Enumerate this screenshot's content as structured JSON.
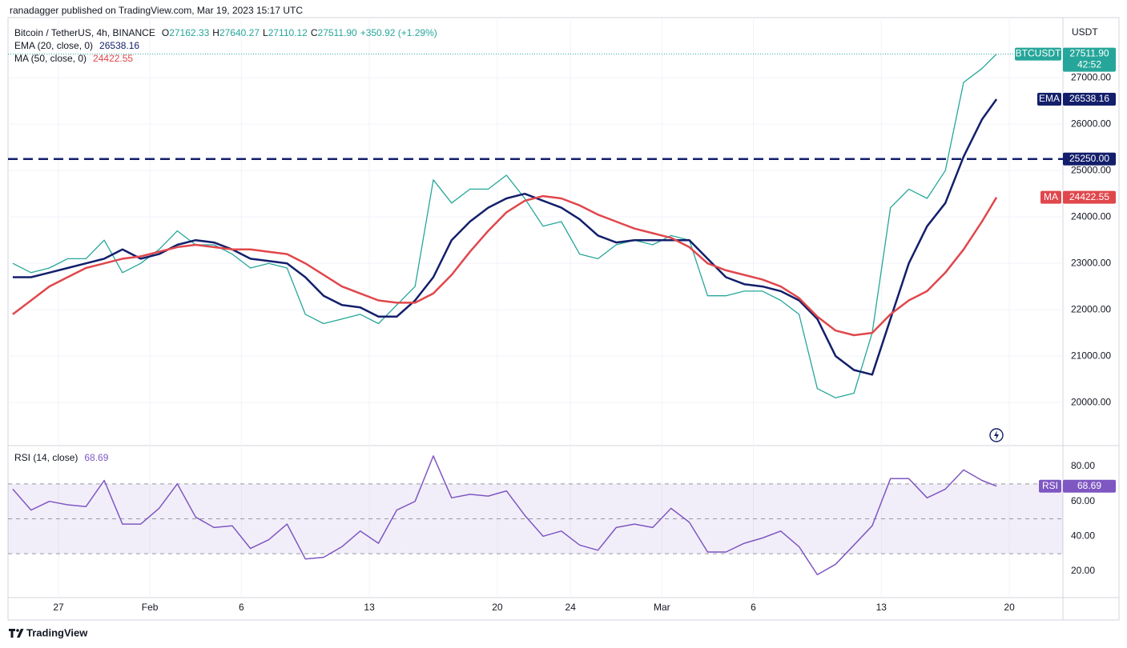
{
  "header": {
    "text": "ranadagger published on TradingView.com, Mar 19, 2023 15:17 UTC"
  },
  "footer": {
    "brand": "TradingView"
  },
  "chart_data": [
    {
      "type": "line",
      "title": "Bitcoin / TetherUS, 4h, BINANCE",
      "axis_label": "USDT",
      "ohlc": [
        {
          "label": "O",
          "value": "27162.33"
        },
        {
          "label": "H",
          "value": "27640.27"
        },
        {
          "label": "L",
          "value": "27110.12"
        },
        {
          "label": "C",
          "value": "27511.90"
        }
      ],
      "change": "+350.92 (+1.29%)",
      "last_price": {
        "value": 27511.9,
        "label": "27511.90"
      },
      "countdown": "42:52",
      "level": {
        "value": 25250,
        "label": "25250.00"
      },
      "xlim": [
        24.24,
        81.93
      ],
      "ylim": [
        19070,
        28160
      ],
      "yticks": [
        {
          "value": 20000,
          "label": "20000.00"
        },
        {
          "value": 21000,
          "label": "21000.00"
        },
        {
          "value": 22000,
          "label": "22000.00"
        },
        {
          "value": 23000,
          "label": "23000.00"
        },
        {
          "value": 24000,
          "label": "24000.00"
        },
        {
          "value": 25000,
          "label": "25000.00"
        },
        {
          "value": 26000,
          "label": "26000.00"
        },
        {
          "value": 27000,
          "label": "27000.00"
        }
      ],
      "grid": true,
      "x": [
        24.5,
        25.5,
        26.5,
        27.5,
        28.5,
        29.5,
        30.5,
        31.5,
        32.5,
        33.5,
        34.5,
        35.5,
        36.5,
        37.5,
        38.5,
        39.5,
        40.5,
        41.5,
        42.5,
        43.5,
        44.5,
        45.5,
        46.5,
        47.5,
        48.5,
        49.5,
        50.5,
        51.5,
        52.5,
        53.5,
        54.5,
        55.5,
        56.5,
        57.5,
        58.5,
        59.5,
        60.5,
        61.5,
        62.5,
        63.5,
        64.5,
        65.5,
        66.5,
        67.5,
        68.5,
        69.5,
        70.5,
        71.5,
        72.5,
        73.5,
        74.5,
        75.5,
        76.5,
        77.5,
        78.3
      ],
      "series": [
        {
          "name": "BTCUSDT",
          "color": "#26a69a",
          "values": [
            23000,
            22800,
            22900,
            23100,
            23100,
            23500,
            22800,
            23000,
            23300,
            23700,
            23400,
            23400,
            23200,
            22900,
            23000,
            22900,
            21900,
            21700,
            21800,
            21900,
            21700,
            22100,
            22500,
            24800,
            24300,
            24600,
            24600,
            24900,
            24400,
            23800,
            23900,
            23200,
            23100,
            23400,
            23500,
            23400,
            23600,
            23500,
            22300,
            22300,
            22400,
            22400,
            22200,
            21900,
            20300,
            20100,
            20200,
            21500,
            24200,
            24600,
            24400,
            25000,
            26900,
            27200,
            27511.9
          ]
        },
        {
          "name": "EMA (20, close, 0)",
          "tag": "EMA",
          "color": "#131f6b",
          "values": [
            22700,
            22700,
            22800,
            22900,
            23000,
            23100,
            23300,
            23100,
            23200,
            23400,
            23500,
            23450,
            23300,
            23100,
            23050,
            23000,
            22700,
            22300,
            22100,
            22050,
            21850,
            21850,
            22200,
            22700,
            23500,
            23900,
            24200,
            24400,
            24500,
            24350,
            24200,
            23950,
            23600,
            23450,
            23500,
            23500,
            23500,
            23500,
            23100,
            22700,
            22550,
            22500,
            22400,
            22200,
            21800,
            21000,
            20700,
            20600,
            21800,
            23000,
            23800,
            24300,
            25300,
            26100,
            26538.16
          ]
        },
        {
          "name": "MA (50, close, 0)",
          "tag": "MA",
          "color": "#e0474c",
          "values": [
            21900,
            22200,
            22500,
            22700,
            22900,
            23000,
            23100,
            23150,
            23250,
            23350,
            23400,
            23350,
            23300,
            23300,
            23250,
            23200,
            23000,
            22750,
            22500,
            22350,
            22200,
            22150,
            22150,
            22350,
            22750,
            23250,
            23700,
            24100,
            24350,
            24450,
            24400,
            24250,
            24050,
            23900,
            23750,
            23650,
            23550,
            23350,
            23000,
            22850,
            22750,
            22650,
            22500,
            22250,
            21850,
            21550,
            21450,
            21500,
            21900,
            22200,
            22400,
            22800,
            23300,
            23900,
            24422.55
          ]
        }
      ]
    },
    {
      "type": "line",
      "xlim": [
        24.24,
        81.93
      ],
      "ylim": [
        4.9,
        91.9
      ],
      "yticks": [
        {
          "value": 20,
          "label": "20.00"
        },
        {
          "value": 40,
          "label": "40.00"
        },
        {
          "value": 60,
          "label": "60.00"
        },
        {
          "value": 80,
          "label": "80.00"
        }
      ],
      "xticks": [
        {
          "value": 27,
          "label": "27"
        },
        {
          "value": 32,
          "label": "Feb"
        },
        {
          "value": 37,
          "label": "6"
        },
        {
          "value": 44,
          "label": "13"
        },
        {
          "value": 51,
          "label": "20"
        },
        {
          "value": 55,
          "label": "24"
        },
        {
          "value": 60,
          "label": "Mar"
        },
        {
          "value": 65,
          "label": "6"
        },
        {
          "value": 72,
          "label": "13"
        },
        {
          "value": 79,
          "label": "20"
        }
      ],
      "band": [
        30,
        70
      ],
      "midline": 50,
      "x": [
        24.5,
        25.5,
        26.5,
        27.5,
        28.5,
        29.5,
        30.5,
        31.5,
        32.5,
        33.5,
        34.5,
        35.5,
        36.5,
        37.5,
        38.5,
        39.5,
        40.5,
        41.5,
        42.5,
        43.5,
        44.5,
        45.5,
        46.5,
        47.5,
        48.5,
        49.5,
        50.5,
        51.5,
        52.5,
        53.5,
        54.5,
        55.5,
        56.5,
        57.5,
        58.5,
        59.5,
        60.5,
        61.5,
        62.5,
        63.5,
        64.5,
        65.5,
        66.5,
        67.5,
        68.5,
        69.5,
        70.5,
        71.5,
        72.5,
        73.5,
        74.5,
        75.5,
        76.5,
        77.5,
        78.3
      ],
      "series": [
        {
          "name": "RSI (14, close)",
          "tag": "RSI",
          "color": "#7e57c2",
          "values": [
            67,
            55,
            60,
            58,
            57,
            72,
            47,
            47,
            56,
            70,
            51,
            45,
            46,
            33,
            38,
            47,
            27,
            28,
            34,
            43,
            36,
            55,
            60,
            86,
            62,
            64,
            63,
            66,
            52,
            40,
            43,
            35,
            32,
            45,
            47,
            45,
            56,
            48,
            31,
            31,
            36,
            39,
            43,
            34,
            18,
            24,
            35,
            46,
            73,
            73,
            62,
            67,
            78,
            72,
            68.69
          ]
        }
      ]
    }
  ]
}
